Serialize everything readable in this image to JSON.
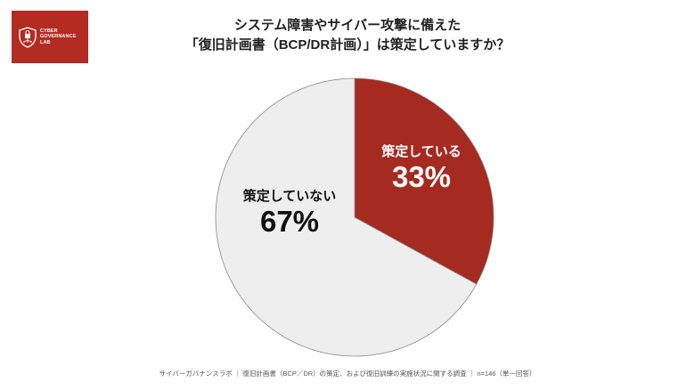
{
  "logo": {
    "lines": [
      "CYBER",
      "GOVERNANCE",
      "LAB"
    ],
    "background": "#b42b22"
  },
  "title": {
    "line1": "システム障害やサイバー攻撃に備えた",
    "line2": "「復旧計画書（BCP/DR計画）」は策定していますか？"
  },
  "footer": "サイバーガバナンスラボ ｜ 復旧計画書（BCP／DR）の策定、および復旧訓練の実施状況に関する調査 ｜ n=146（単一回答）",
  "chart_data": {
    "type": "pie",
    "title": "システム障害やサイバー攻撃に備えた「復旧計画書（BCP/DR計画）」は策定していますか？",
    "categories": [
      "策定している",
      "策定していない"
    ],
    "values": [
      33,
      67
    ],
    "unit": "%",
    "colors": [
      "#a52a20",
      "#eeeeee"
    ],
    "labels": [
      {
        "category": "策定している",
        "value_text": "33%"
      },
      {
        "category": "策定していない",
        "value_text": "67%"
      }
    ],
    "legend": "none (inline labels)",
    "n": 146
  }
}
